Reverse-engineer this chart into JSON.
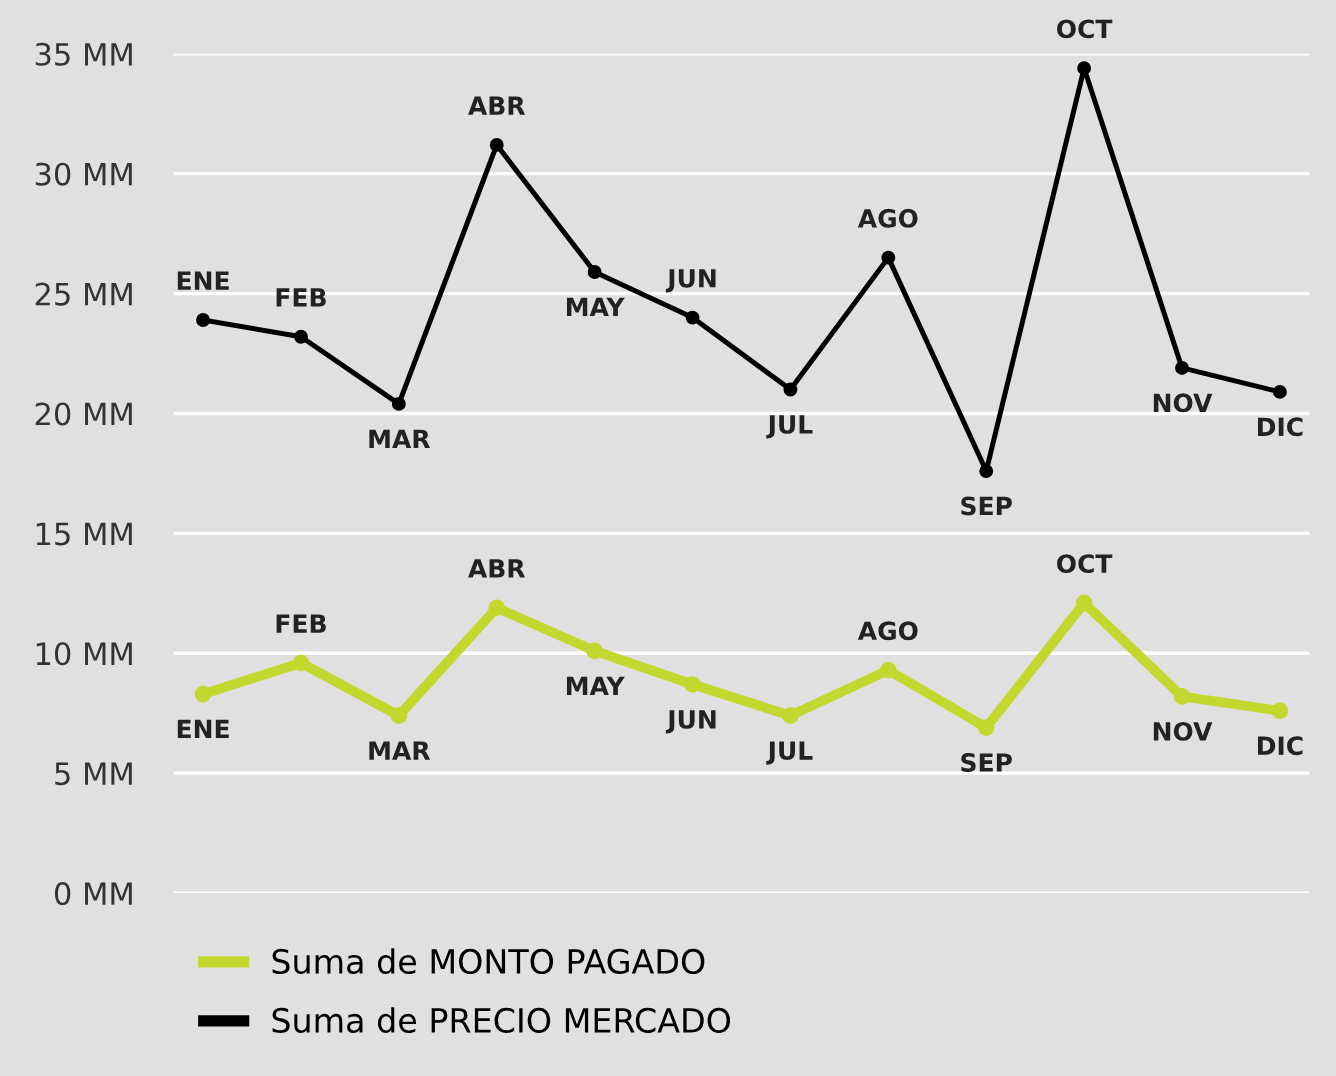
{
  "chart_data": {
    "type": "line",
    "categories": [
      "ENE",
      "FEB",
      "MAR",
      "ABR",
      "MAY",
      "JUN",
      "JUL",
      "AGO",
      "SEP",
      "OCT",
      "NOV",
      "DIC"
    ],
    "series": [
      {
        "name": "Suma de MONTO PAGADO",
        "color": "#c3d82e",
        "values": [
          8.3,
          9.6,
          7.4,
          11.9,
          10.1,
          8.7,
          7.4,
          9.3,
          6.9,
          12.1,
          8.2,
          7.6
        ]
      },
      {
        "name": "Suma de PRECIO MERCADO",
        "color": "#000000",
        "values": [
          23.9,
          23.2,
          20.4,
          31.2,
          25.9,
          24.0,
          21.0,
          26.5,
          17.6,
          34.4,
          21.9,
          20.9
        ]
      }
    ],
    "ylim": [
      0,
      35
    ],
    "yticks": [
      {
        "value": 0,
        "label": "0 MM"
      },
      {
        "value": 5,
        "label": "5 MM"
      },
      {
        "value": 10,
        "label": "10 MM"
      },
      {
        "value": 15,
        "label": "15 MM"
      },
      {
        "value": 20,
        "label": "20 MM"
      },
      {
        "value": 25,
        "label": "25 MM"
      },
      {
        "value": 30,
        "label": "30 MM"
      },
      {
        "value": 35,
        "label": "35 MM"
      }
    ],
    "grid": "y",
    "legend": "bottom",
    "marker": "circle",
    "line_style": "solid",
    "tick_labels": "y"
  }
}
